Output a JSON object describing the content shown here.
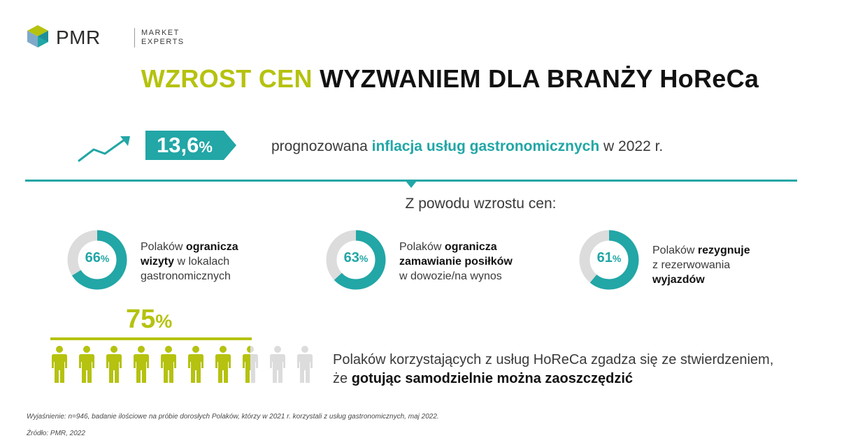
{
  "logo": {
    "brand": "PMR",
    "tagline_line1": "MARKET",
    "tagline_line2": "EXPERTS"
  },
  "title": {
    "accent": "WZROST CEN",
    "rest": "WYZWANIEM DLA BRANŻY HoReCa"
  },
  "inflation": {
    "value": "13,6",
    "unit": "%",
    "text_before": "prognozowana",
    "text_highlight": "inflacja usług gastronomicznych",
    "text_after": "w 2022 r."
  },
  "subheading": "Z powodu wzrostu cen:",
  "stats": [
    {
      "percent": 66,
      "label_value": "66",
      "unit": "%",
      "line1_plain": "Polaków ",
      "line1_bold": "ogranicza",
      "line2_bold": "wizyty",
      "line2_plain": " w lokalach",
      "line3_plain": "gastronomicznych"
    },
    {
      "percent": 63,
      "label_value": "63",
      "unit": "%",
      "line1_plain": "Polaków ",
      "line1_bold": "ogranicza",
      "line2_bold": "zamawianie posiłków",
      "line3_plain": "w dowozie/na wynos"
    },
    {
      "percent": 61,
      "label_value": "61",
      "unit": "%",
      "line1_plain": "Polaków ",
      "line1_bold": "rezygnuje",
      "line2_plain": "z rezerwowania",
      "line3_bold": "wyjazdów"
    }
  ],
  "people": {
    "value": "75",
    "unit": "%",
    "fraction_filled": 0.75,
    "total_icons": 10,
    "text_line1": "Polaków korzystających z usług HoReCa zgadza się ze stwierdzeniem,",
    "text_line2_plain": "że ",
    "text_line2_bold": "gotując samodzielnie można zaoszczędzić"
  },
  "footnote": "Wyjaśnienie: n=946, badanie ilościowe na próbie dorosłych Polaków, którzy w 2021 r. korzystali z usług gastronomicznych, maj 2022.",
  "source": "Źródło: PMR, 2022",
  "colors": {
    "teal": "#22a6a6",
    "lime": "#b5c20f",
    "grey": "#dcdcdc"
  }
}
